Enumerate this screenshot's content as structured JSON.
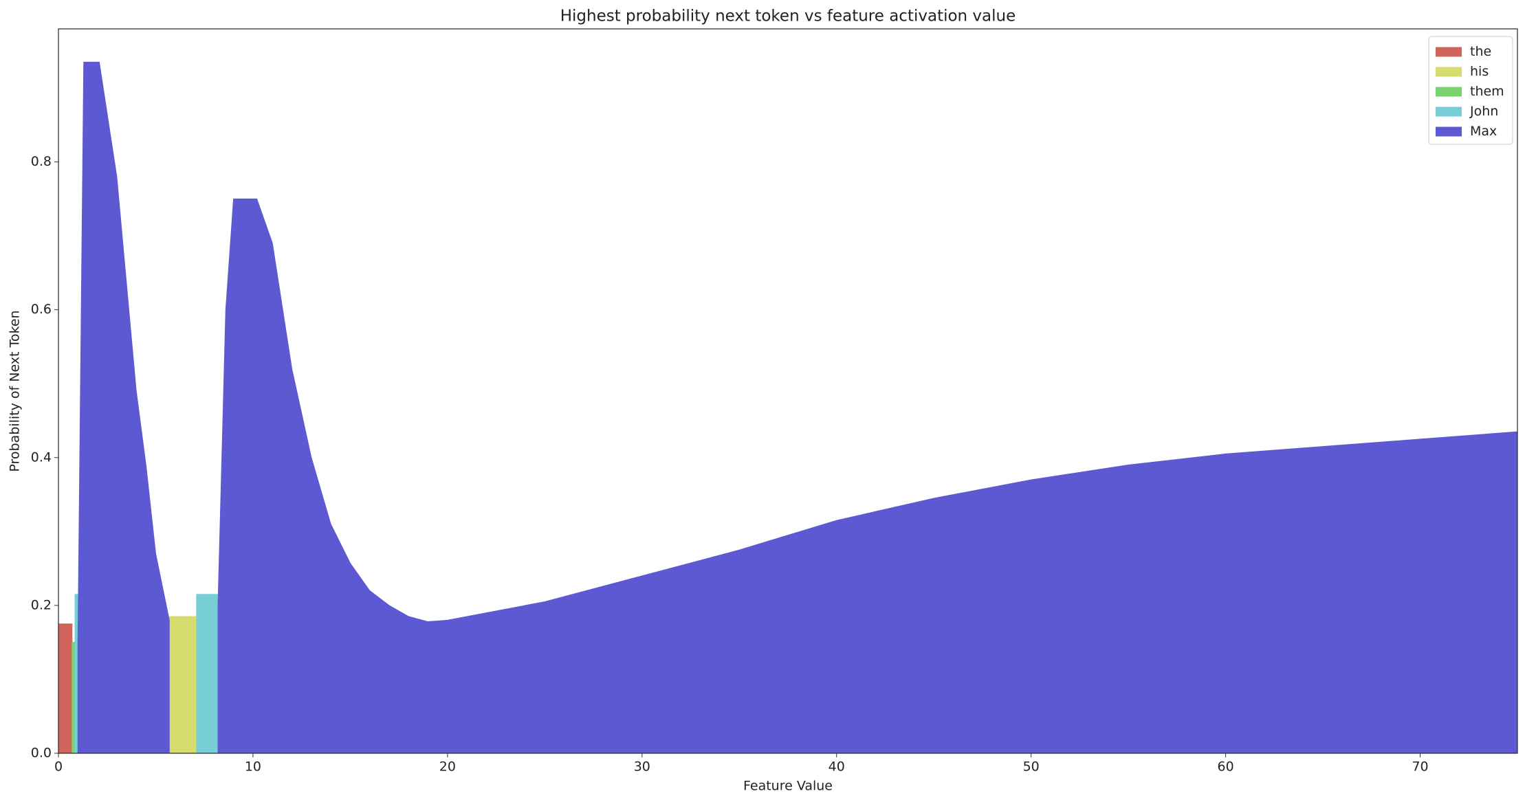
{
  "chart_data": {
    "type": "area",
    "title": "Highest probability next token vs feature activation value",
    "x_label": "Feature Value",
    "y_label": "Probability of Next Token",
    "x": [
      0,
      0.7,
      0.85,
      1.0,
      1.3,
      2.1,
      3,
      4,
      4.5,
      5,
      5.7,
      7.1,
      8.2,
      8.6,
      9,
      10.2,
      11,
      12,
      13,
      14,
      15,
      16,
      17,
      18,
      19,
      20,
      25,
      30,
      35,
      40,
      45,
      50,
      55,
      60,
      65,
      70,
      75
    ],
    "series": [
      {
        "name": "the",
        "color": "#d1645a",
        "values": [
          0.175,
          0.175,
          null,
          null,
          null,
          null,
          null,
          null,
          null,
          null,
          null,
          null,
          null,
          null,
          null,
          null,
          null,
          null,
          null,
          null,
          null,
          null,
          null,
          null,
          null,
          null,
          null,
          null,
          null,
          null,
          null,
          null,
          null,
          null,
          null,
          null,
          null
        ]
      },
      {
        "name": "his",
        "color": "#d6dc6e",
        "values": [
          null,
          null,
          null,
          null,
          null,
          null,
          null,
          null,
          null,
          null,
          0.185,
          0.185,
          null,
          null,
          null,
          null,
          null,
          null,
          null,
          null,
          null,
          null,
          null,
          null,
          null,
          null,
          null,
          null,
          null,
          null,
          null,
          null,
          null,
          null,
          null,
          null,
          null
        ]
      },
      {
        "name": "them",
        "color": "#78d36e",
        "values": [
          null,
          0.15,
          0.15,
          null,
          null,
          null,
          null,
          null,
          null,
          null,
          null,
          null,
          null,
          null,
          null,
          null,
          null,
          null,
          null,
          null,
          null,
          null,
          null,
          null,
          null,
          null,
          null,
          null,
          null,
          null,
          null,
          null,
          null,
          null,
          null,
          null,
          null
        ]
      },
      {
        "name": "John",
        "color": "#78ced6",
        "values": [
          null,
          null,
          0.215,
          0.215,
          null,
          null,
          null,
          null,
          null,
          null,
          null,
          0.215,
          0.215,
          null,
          null,
          null,
          null,
          null,
          null,
          null,
          null,
          null,
          null,
          null,
          null,
          null,
          null,
          null,
          null,
          null,
          null,
          null,
          null,
          null,
          null,
          null,
          null
        ]
      },
      {
        "name": "Max",
        "color": "#5c59d3",
        "values": [
          null,
          null,
          null,
          0.15,
          0.935,
          0.935,
          0.78,
          0.49,
          0.39,
          0.27,
          0.18,
          null,
          0.2,
          0.6,
          0.75,
          0.75,
          0.69,
          0.52,
          0.4,
          0.31,
          0.257,
          0.22,
          0.2,
          0.185,
          0.178,
          0.18,
          0.205,
          0.24,
          0.275,
          0.315,
          0.345,
          0.37,
          0.39,
          0.405,
          0.415,
          0.425,
          0.435
        ]
      }
    ],
    "xlim": [
      0,
      75
    ],
    "ylim": [
      0,
      0.98
    ],
    "xticks": [
      0,
      10,
      20,
      30,
      40,
      50,
      60,
      70
    ],
    "yticks": [
      {
        "value": 0,
        "label": "0.0"
      },
      0.2,
      0.4,
      0.6,
      0.8
    ],
    "legend": "upper right",
    "grid": false
  }
}
